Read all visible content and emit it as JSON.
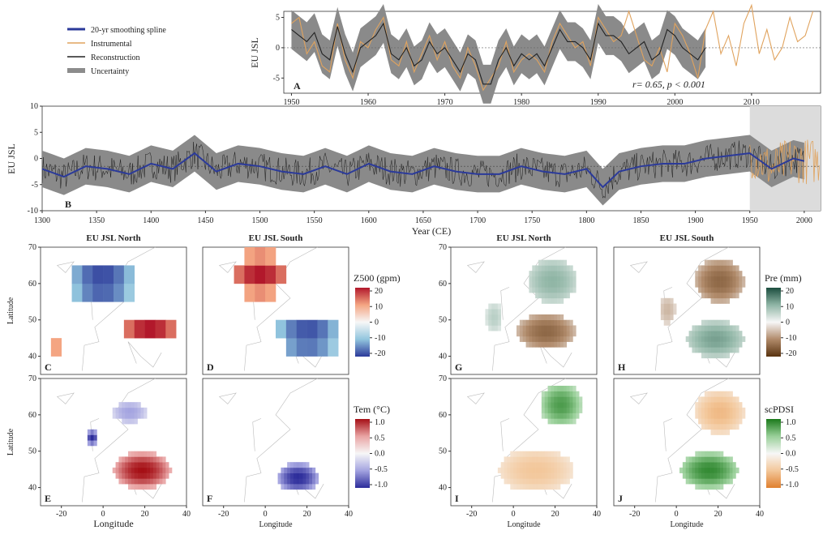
{
  "figure": {
    "legend": {
      "items": [
        {
          "label": "20-yr smoothing spline",
          "color": "#2b3a9a"
        },
        {
          "label": "Instrumental",
          "color": "#e0a35e"
        },
        {
          "label": "Reconstruction",
          "color": "#222222"
        },
        {
          "label": "Uncertainty",
          "color": "#8c8c8c"
        }
      ]
    }
  },
  "chart_data": [
    {
      "panel": "A",
      "type": "line",
      "ylabel": "EU JSL",
      "xlabel": "",
      "xlim": [
        1949,
        2019
      ],
      "ylim": [
        -7.5,
        6
      ],
      "xticks": [
        1950,
        1960,
        1970,
        1980,
        1990,
        2000,
        2010
      ],
      "yticks": [
        -5,
        0,
        5
      ],
      "annotation": "r= 0.65, p < 0.001",
      "series": [
        {
          "name": "Reconstruction",
          "color": "#222222",
          "x": [
            1950,
            1951,
            1952,
            1953,
            1954,
            1955,
            1956,
            1957,
            1958,
            1959,
            1960,
            1961,
            1962,
            1963,
            1964,
            1965,
            1966,
            1967,
            1968,
            1969,
            1970,
            1971,
            1972,
            1973,
            1974,
            1975,
            1976,
            1977,
            1978,
            1979,
            1980,
            1981,
            1982,
            1983,
            1984,
            1985,
            1986,
            1987,
            1988,
            1989,
            1990,
            1991,
            1992,
            1993,
            1994,
            1995,
            1996,
            1997,
            1998,
            1999,
            2000,
            2001,
            2002,
            2003,
            2004
          ],
          "values": [
            3,
            2,
            1,
            2.5,
            -1,
            -2,
            3.5,
            -1,
            -4,
            0,
            1,
            2,
            4,
            -1,
            -2,
            0,
            -3,
            -2,
            1,
            -1,
            0,
            -2,
            -4,
            -1,
            -2,
            -6,
            -6,
            -2,
            0,
            -3,
            -1,
            -2,
            -1,
            -3,
            0,
            3,
            1,
            1,
            0,
            -2,
            4,
            2,
            2,
            1,
            -1,
            0,
            1,
            -2,
            -1,
            3,
            2,
            0,
            -1,
            -2,
            0
          ]
        },
        {
          "name": "Instrumental",
          "color": "#e0a35e",
          "x": [
            1950,
            1951,
            1952,
            1953,
            1954,
            1955,
            1956,
            1957,
            1958,
            1959,
            1960,
            1961,
            1962,
            1963,
            1964,
            1965,
            1966,
            1967,
            1968,
            1969,
            1970,
            1971,
            1972,
            1973,
            1974,
            1975,
            1976,
            1977,
            1978,
            1979,
            1980,
            1981,
            1982,
            1983,
            1984,
            1985,
            1986,
            1987,
            1988,
            1989,
            1990,
            1991,
            1992,
            1993,
            1994,
            1995,
            1996,
            1997,
            1998,
            1999,
            2000,
            2001,
            2002,
            2003,
            2004,
            2005,
            2006,
            2007,
            2008,
            2009,
            2010,
            2011,
            2012,
            2013,
            2014,
            2015,
            2016,
            2017,
            2018
          ],
          "values": [
            4,
            5,
            -1,
            1,
            -3,
            -4,
            4,
            -2,
            -5,
            1,
            0,
            3,
            5,
            -2,
            -3,
            1,
            -4,
            -1,
            2,
            -2,
            1,
            -3,
            -5,
            0,
            -3,
            -7,
            -5,
            -3,
            1,
            -4,
            -2,
            -1,
            -2,
            -4,
            1,
            4,
            2,
            0,
            1,
            -3,
            5,
            3,
            1,
            2,
            6,
            2,
            -2,
            -3,
            0,
            -4,
            4,
            2,
            -1,
            -5,
            3,
            6,
            -1,
            2,
            -3,
            4,
            7,
            -1,
            3,
            -2,
            0,
            5,
            1,
            2,
            6
          ]
        }
      ],
      "band": {
        "name": "Uncertainty",
        "half_width": 3.2
      }
    },
    {
      "panel": "B",
      "type": "line",
      "ylabel": "EU JSL",
      "xlabel": "Year (CE)",
      "xlim": [
        1300,
        2015
      ],
      "ylim": [
        -10,
        10
      ],
      "xticks": [
        1300,
        1350,
        1400,
        1450,
        1500,
        1550,
        1600,
        1650,
        1700,
        1750,
        1800,
        1850,
        1900,
        1950,
        2000
      ],
      "yticks": [
        -10,
        -5,
        0,
        5,
        10
      ],
      "highlight": [
        1950,
        2015
      ],
      "series": [
        {
          "name": "20-yr smoothing spline",
          "color": "#2b3a9a",
          "x": [
            1300,
            1320,
            1340,
            1360,
            1380,
            1400,
            1420,
            1440,
            1460,
            1480,
            1500,
            1520,
            1540,
            1560,
            1580,
            1600,
            1620,
            1640,
            1660,
            1680,
            1700,
            1720,
            1740,
            1760,
            1780,
            1800,
            1815,
            1830,
            1850,
            1870,
            1890,
            1910,
            1930,
            1950,
            1970,
            1990,
            2000
          ],
          "values": [
            -2,
            -3.5,
            -1.5,
            -2,
            -3,
            -1,
            -2,
            1,
            -2.5,
            -1,
            -1.5,
            -2.5,
            -3,
            -1.5,
            -3,
            -1,
            -2.5,
            -3,
            -1.5,
            -2.5,
            -3,
            -3,
            -1.5,
            -2.5,
            -3,
            -2,
            -5.5,
            -2.5,
            -1.5,
            -1,
            -1,
            0,
            0.5,
            1,
            -2,
            0,
            -0.5
          ]
        }
      ],
      "band": {
        "name": "Uncertainty",
        "half_width": 3.5
      }
    },
    {
      "type": "heatmap",
      "panels": [
        {
          "letter": "C",
          "title": "EU JSL North",
          "variable": "Z500"
        },
        {
          "letter": "D",
          "title": "EU JSL South",
          "variable": "Z500"
        },
        {
          "letter": "E",
          "title": "",
          "variable": "Tem"
        },
        {
          "letter": "F",
          "title": "",
          "variable": "Tem"
        },
        {
          "letter": "G",
          "title": "EU JSL North",
          "variable": "Pre"
        },
        {
          "letter": "H",
          "title": "EU JSL South",
          "variable": "Pre"
        },
        {
          "letter": "I",
          "title": "",
          "variable": "scPDSI"
        },
        {
          "letter": "J",
          "title": "",
          "variable": "scPDSI"
        }
      ],
      "xlabel": "Longitude",
      "ylabel": "Latitude",
      "xticks": [
        -20,
        0,
        20,
        40
      ],
      "yticks": [
        40,
        50,
        60,
        70
      ],
      "colorbars": [
        {
          "title": "Z500 (gpm)",
          "ticks": [
            "20",
            "10",
            "0",
            "-10",
            "-20"
          ],
          "colors": [
            "#b2182b",
            "#f4a582",
            "#f7f7f7",
            "#92c5de",
            "#2c3a9a"
          ]
        },
        {
          "title": "Tem (°C)",
          "ticks": [
            "1.0",
            "0.5",
            "0.0",
            "-0.5",
            "-1.0"
          ],
          "colors": [
            "#a50f15",
            "#e9a3a3",
            "#f7f7f7",
            "#a3a3e0",
            "#2c2c9a"
          ]
        },
        {
          "title": "Pre (mm)",
          "ticks": [
            "20",
            "10",
            "0",
            "-10",
            "-20"
          ],
          "colors": [
            "#1b4d3e",
            "#8fb5a5",
            "#f7f7f7",
            "#b08a6a",
            "#5a3410"
          ]
        },
        {
          "title": "scPDSI",
          "ticks": [
            "1.0",
            "0.5",
            "0.0",
            "-0.5",
            "-1.0"
          ],
          "colors": [
            "#1b7a1b",
            "#98cf98",
            "#f7f7f7",
            "#f3c79a",
            "#e08030"
          ]
        }
      ]
    }
  ]
}
